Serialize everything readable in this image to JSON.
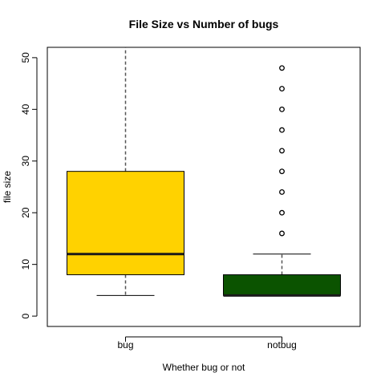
{
  "chart_data": {
    "type": "boxplot",
    "title": "File Size vs Number of bugs",
    "xlabel": "Whether bug or not",
    "ylabel": "file size",
    "categories": [
      "bug",
      "notbug"
    ],
    "ylim": [
      -2,
      52
    ],
    "yticks": [
      0,
      10,
      20,
      30,
      40,
      50
    ],
    "grid": false,
    "legend": "none",
    "boxes": [
      {
        "category": "bug",
        "whisker_low": 4,
        "q1": 8,
        "median": 12,
        "q3": 28,
        "whisker_high": 52,
        "outliers": [],
        "color": "#FFD200"
      },
      {
        "category": "notbug",
        "whisker_low": 4,
        "q1": 4,
        "median": 4,
        "q3": 8,
        "whisker_high": 12,
        "outliers": [
          16,
          20,
          24,
          28,
          32,
          36,
          40,
          44,
          48
        ],
        "color": "#0B5300"
      }
    ]
  }
}
